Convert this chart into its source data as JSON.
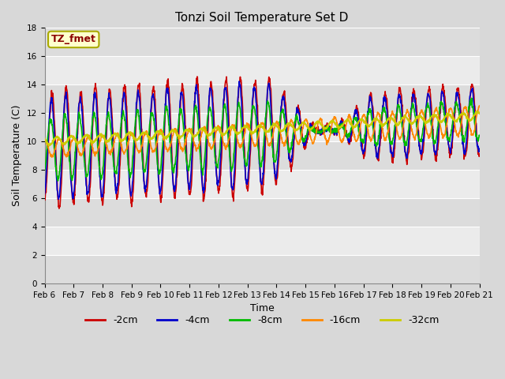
{
  "title": "Tonzi Soil Temperature Set D",
  "xlabel": "Time",
  "ylabel": "Soil Temperature (C)",
  "annotation": "TZ_fmet",
  "annotation_color": "#8B0000",
  "annotation_bg": "#FFFFCC",
  "annotation_edge": "#AAAA00",
  "ylim": [
    0,
    18
  ],
  "yticks": [
    0,
    2,
    4,
    6,
    8,
    10,
    12,
    14,
    16,
    18
  ],
  "fig_bg": "#D8D8D8",
  "plot_bg_light": "#EBEBEB",
  "plot_bg_dark": "#DCDCDC",
  "grid_color": "#FFFFFF",
  "series": {
    "-2cm": {
      "color": "#CC0000",
      "lw": 1.2
    },
    "-4cm": {
      "color": "#0000CC",
      "lw": 1.2
    },
    "-8cm": {
      "color": "#00BB00",
      "lw": 1.2
    },
    "-16cm": {
      "color": "#FF8800",
      "lw": 1.2
    },
    "-32cm": {
      "color": "#CCCC00",
      "lw": 1.5
    }
  },
  "xtick_days": [
    6,
    7,
    8,
    9,
    10,
    11,
    12,
    13,
    14,
    15,
    16,
    17,
    18,
    19,
    20,
    21
  ],
  "title_fontsize": 11,
  "axis_fontsize": 9,
  "tick_fontsize": 7.5,
  "legend_fontsize": 9
}
